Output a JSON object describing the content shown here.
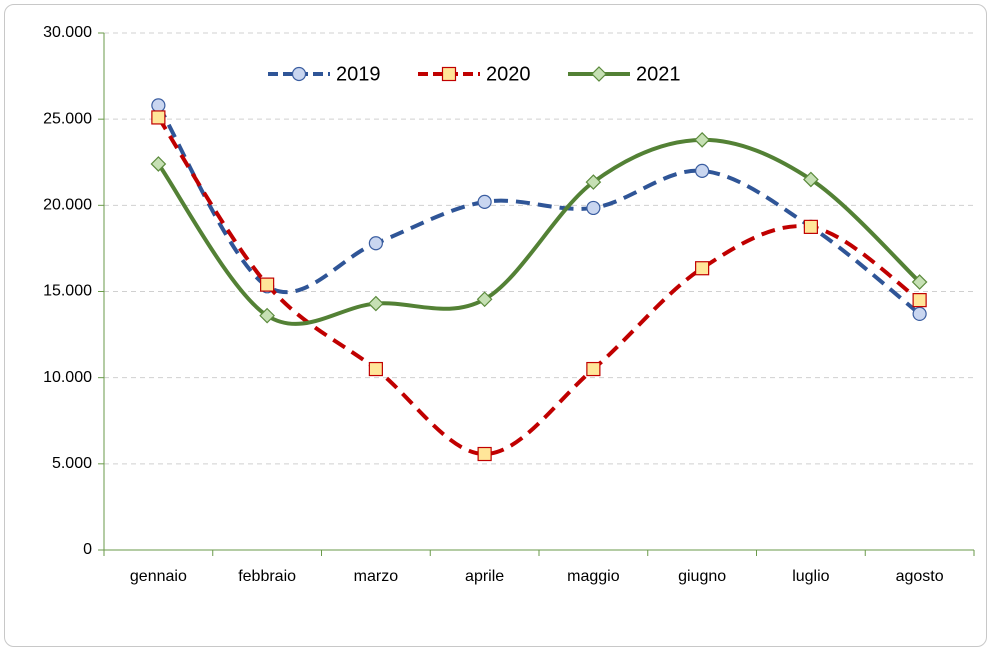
{
  "chart_data": {
    "type": "line",
    "categories": [
      "gennaio",
      "febbraio",
      "marzo",
      "aprile",
      "maggio",
      "giugno",
      "luglio",
      "agosto"
    ],
    "series": [
      {
        "name": "2019",
        "color": "#2f5597",
        "values": [
          25800,
          15300,
          17800,
          20200,
          19850,
          22000,
          18750,
          13700
        ]
      },
      {
        "name": "2020",
        "color": "#c00000",
        "values": [
          25100,
          15400,
          10500,
          5570,
          10500,
          16350,
          18750,
          14500
        ]
      },
      {
        "name": "2021",
        "color": "#538135",
        "values": [
          22400,
          13600,
          14300,
          14550,
          21350,
          23800,
          21500,
          15550
        ]
      }
    ],
    "ylim": [
      0,
      30000
    ],
    "yticks": [
      0,
      {
        "value": 5000,
        "label": "5.000"
      },
      {
        "value": 10000,
        "label": "10.000"
      },
      {
        "value": 15000,
        "label": "15.000"
      },
      {
        "value": 20000,
        "label": "20.000"
      },
      {
        "value": 25000,
        "label": "25.000"
      },
      {
        "value": 30000,
        "label": "30.000"
      }
    ],
    "grid": true,
    "smooth": true
  }
}
